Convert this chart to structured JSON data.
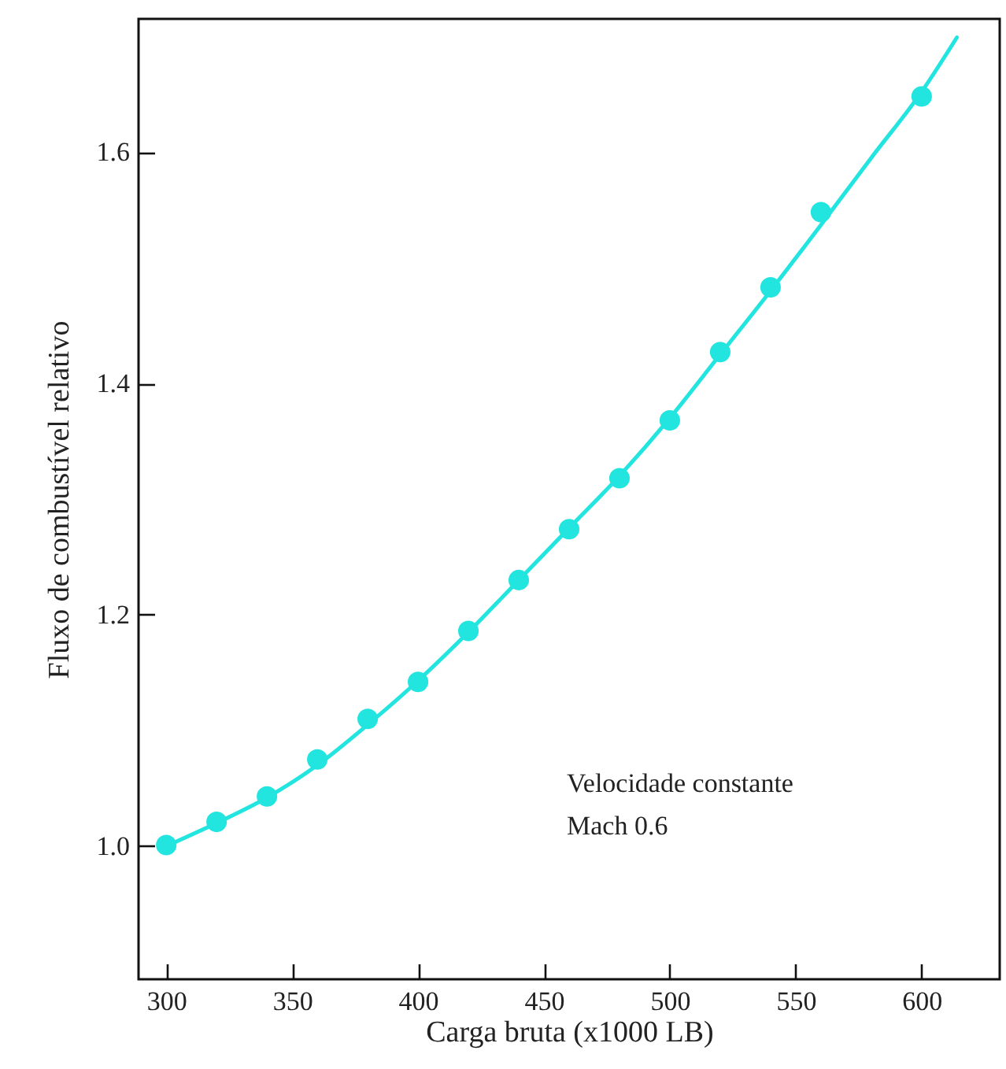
{
  "chart_data": {
    "type": "scatter",
    "xlabel": "Carga bruta (x1000 LB)",
    "ylabel": "Fluxo de combustível relativo",
    "xlim": [
      289,
      631
    ],
    "ylim": [
      0.885,
      1.715
    ],
    "xticks": [
      300,
      350,
      400,
      450,
      500,
      550,
      600
    ],
    "yticks": [
      {
        "value": 1.0,
        "label": "1.0"
      },
      1.2,
      1.4,
      1.6
    ],
    "grid": false,
    "annotations": [
      "Velocidade constante",
      "Mach 0.6"
    ],
    "series": [
      {
        "type": "line",
        "color": "#22e5e0",
        "marker": "none",
        "x": [
          300,
          320,
          340,
          360,
          380,
          400,
          420,
          440,
          460,
          480,
          500,
          520,
          540,
          560,
          580,
          600,
          614
        ],
        "values": [
          1.0,
          1.02,
          1.042,
          1.07,
          1.105,
          1.143,
          1.185,
          1.23,
          1.275,
          1.32,
          1.37,
          1.425,
          1.48,
          1.537,
          1.595,
          1.652,
          1.699
        ]
      },
      {
        "color": "#22e5e0",
        "marker": "circle",
        "x": [
          300,
          320,
          340,
          360,
          380,
          400,
          420,
          440,
          460,
          480,
          500,
          520,
          540,
          560,
          600
        ],
        "values": [
          1.001,
          1.021,
          1.043,
          1.075,
          1.11,
          1.142,
          1.186,
          1.23,
          1.274,
          1.318,
          1.368,
          1.427,
          1.483,
          1.548,
          1.648
        ]
      }
    ]
  }
}
